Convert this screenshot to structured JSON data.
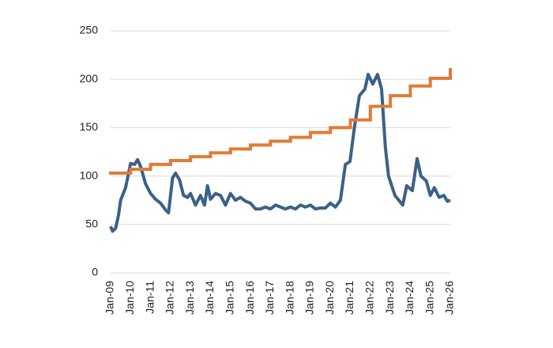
{
  "chart_data": {
    "type": "line",
    "ylim": [
      0,
      250
    ],
    "yticks": [
      0,
      50,
      100,
      150,
      200,
      250
    ],
    "grid": true,
    "xlim": [
      2009,
      2026
    ],
    "xticks": [
      {
        "value": 2009,
        "label": "Jan-09"
      },
      {
        "value": 2010,
        "label": "Jan-10"
      },
      {
        "value": 2011,
        "label": "Jan-11"
      },
      {
        "value": 2012,
        "label": "Jan-12"
      },
      {
        "value": 2013,
        "label": "Jan-13"
      },
      {
        "value": 2014,
        "label": "Jan-14"
      },
      {
        "value": 2015,
        "label": "Jan-15"
      },
      {
        "value": 2016,
        "label": "Jan-16"
      },
      {
        "value": 2017,
        "label": "Jan-17"
      },
      {
        "value": 2018,
        "label": "Jan-18"
      },
      {
        "value": 2019,
        "label": "Jan-19"
      },
      {
        "value": 2020,
        "label": "Jan-20"
      },
      {
        "value": 2021,
        "label": "Jan-21"
      },
      {
        "value": 2022,
        "label": "Jan-22"
      },
      {
        "value": 2023,
        "label": "Jan-23"
      },
      {
        "value": 2024,
        "label": "Jan-24"
      },
      {
        "value": 2025,
        "label": "Jan-25"
      },
      {
        "value": 2026,
        "label": "Jan-26"
      }
    ],
    "series": [
      {
        "color": "#3b6187",
        "step": false,
        "x": [
          2009.0,
          2009.1,
          2009.25,
          2009.4,
          2009.5,
          2009.75,
          2010.0,
          2010.2,
          2010.35,
          2010.5,
          2010.75,
          2011.0,
          2011.25,
          2011.5,
          2011.75,
          2011.9,
          2012.1,
          2012.25,
          2012.45,
          2012.65,
          2012.85,
          2013.0,
          2013.25,
          2013.5,
          2013.7,
          2013.85,
          2014.0,
          2014.25,
          2014.5,
          2014.75,
          2015.0,
          2015.25,
          2015.5,
          2015.75,
          2016.0,
          2016.25,
          2016.5,
          2016.75,
          2017.0,
          2017.25,
          2017.5,
          2017.75,
          2018.0,
          2018.25,
          2018.5,
          2018.75,
          2019.0,
          2019.25,
          2019.5,
          2019.75,
          2020.0,
          2020.25,
          2020.5,
          2020.75,
          2020.98,
          2021.2,
          2021.45,
          2021.73,
          2021.89,
          2022.12,
          2022.36,
          2022.56,
          2022.75,
          2022.91,
          2023.23,
          2023.62,
          2023.82,
          2024.1,
          2024.34,
          2024.53,
          2024.8,
          2025.0,
          2025.2,
          2025.44,
          2025.68,
          2025.85,
          2026.0
        ],
        "values": [
          48,
          43,
          46,
          60,
          75,
          88,
          113,
          112,
          117,
          110,
          92,
          82,
          76,
          72,
          65,
          62,
          98,
          103,
          96,
          80,
          78,
          82,
          70,
          80,
          70,
          90,
          76,
          82,
          80,
          70,
          82,
          75,
          78,
          74,
          72,
          66,
          66,
          68,
          66,
          70,
          68,
          66,
          68,
          66,
          70,
          68,
          70,
          66,
          67,
          67,
          72,
          68,
          75,
          112,
          115,
          150,
          183,
          190,
          205,
          195,
          205,
          190,
          130,
          100,
          80,
          70,
          90,
          85,
          118,
          100,
          95,
          80,
          88,
          78,
          80,
          74,
          75
        ]
      },
      {
        "color": "#e07b39",
        "step": true,
        "x": [
          2009,
          2010,
          2011,
          2012,
          2013,
          2014,
          2015,
          2016,
          2017,
          2018,
          2019,
          2020,
          2021,
          2022,
          2023,
          2024,
          2025,
          2026
        ],
        "values": [
          103,
          107,
          112,
          116,
          120,
          124,
          128,
          132,
          136,
          140,
          145,
          150,
          158,
          172,
          183,
          193,
          201,
          210
        ]
      }
    ]
  }
}
